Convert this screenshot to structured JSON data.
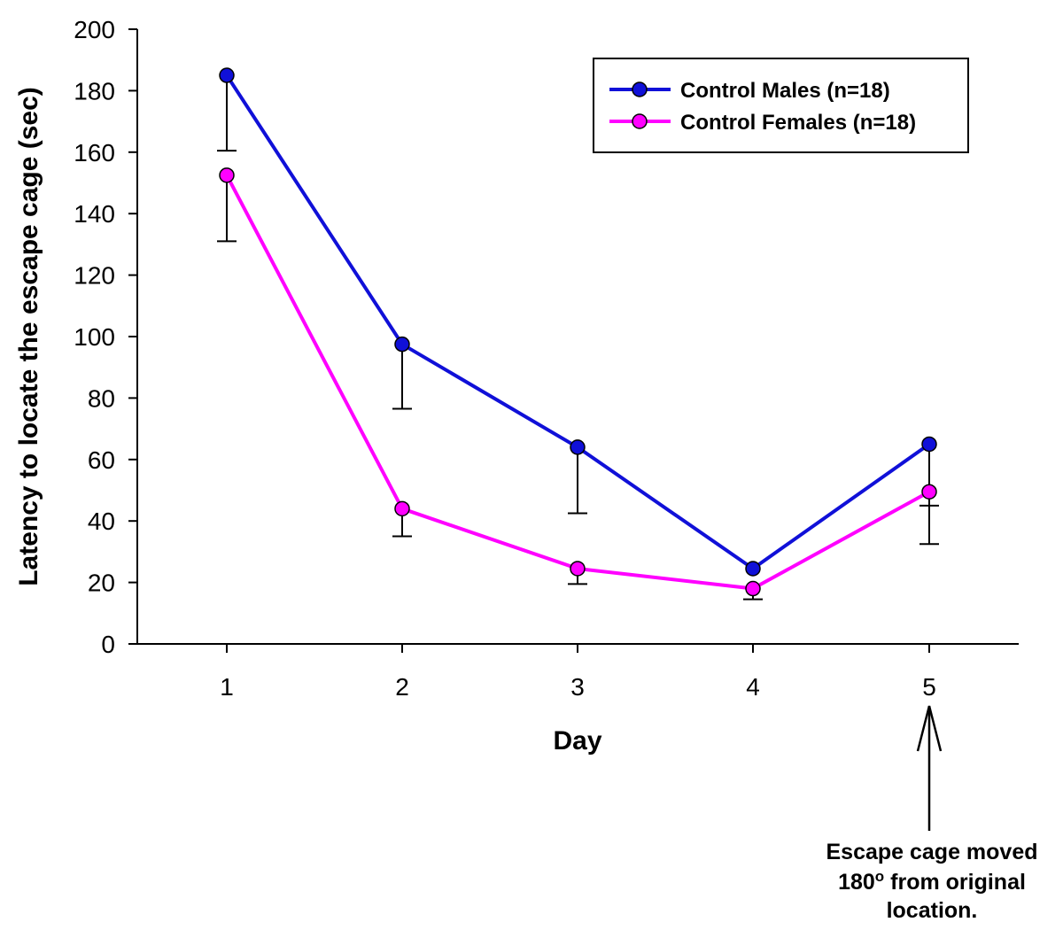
{
  "chart_data": {
    "type": "line",
    "title": "",
    "xlabel": "Day",
    "ylabel": "Latency to locate the escape cage (sec)",
    "x": [
      1,
      2,
      3,
      4,
      5
    ],
    "x_tick_labels": [
      "1",
      "2",
      "3",
      "4",
      "5"
    ],
    "ylim": [
      0,
      200
    ],
    "y_ticks": [
      0,
      20,
      40,
      60,
      80,
      100,
      120,
      140,
      160,
      180,
      200
    ],
    "y_tick_labels": [
      "0",
      "20",
      "40",
      "60",
      "80",
      "100",
      "120",
      "140",
      "160",
      "180",
      "200"
    ],
    "grid": false,
    "legend_position": "top-right",
    "series": [
      {
        "name": "Control Males (n=18)",
        "color": "#1010d8",
        "values": [
          185,
          97.5,
          64,
          24.5,
          65
        ],
        "error_lower": [
          160.5,
          76.5,
          42.5,
          24.5,
          45
        ],
        "error_direction": "down"
      },
      {
        "name": "Control Females (n=18)",
        "color": "#ff00ff",
        "values": [
          152.5,
          44,
          24.5,
          18,
          49.5
        ],
        "error_lower": [
          131,
          35,
          19.5,
          14.5,
          32.5
        ],
        "error_direction": "down"
      }
    ],
    "annotation": {
      "line1": "Escape cage moved",
      "line2_value": "180",
      "line2_degree": "o",
      "line2_rest": " from original",
      "line3": "location.",
      "points_to_x": 5
    }
  }
}
